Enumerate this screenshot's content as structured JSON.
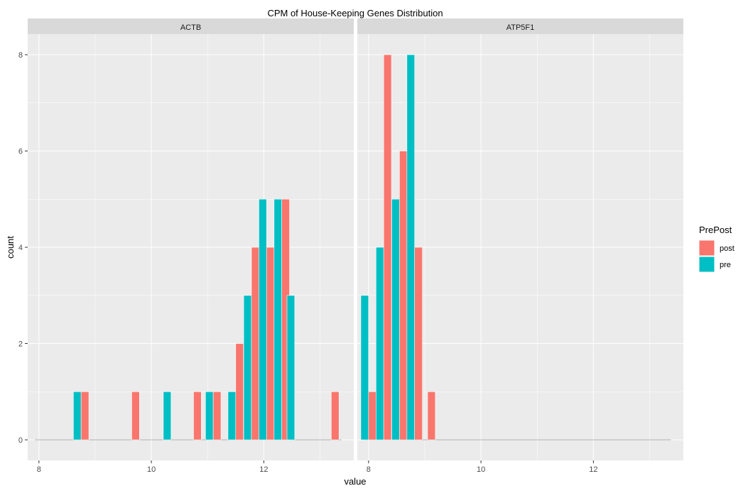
{
  "chart_data": {
    "type": "bar",
    "chart_kind": "faceted histogram (dodged)",
    "title": "CPM of House-Keeping Genes Distribution",
    "xlabel": "value",
    "ylabel": "count",
    "xlim": [
      7.8,
      13.6
    ],
    "ylim": [
      0,
      8.6
    ],
    "x_ticks": [
      8,
      10,
      12
    ],
    "y_ticks": [
      0,
      2,
      4,
      6,
      8
    ],
    "grid": true,
    "legend": {
      "title": "PrePost",
      "position": "right",
      "entries": [
        "post",
        "pre"
      ]
    },
    "colors": {
      "post": "#F8766D",
      "pre": "#00BFC4",
      "panel_bg": "#EBEBEB",
      "strip_bg": "#D9D9D9",
      "grid": "#FFFFFF"
    },
    "bin_width": 0.275,
    "facets": [
      {
        "name": "ACTB",
        "bins": [
          {
            "center": 8.75,
            "pre": 1,
            "post": 1
          },
          {
            "center": 9.65,
            "pre": 0,
            "post": 1
          },
          {
            "center": 10.35,
            "pre": 1,
            "post": 0
          },
          {
            "center": 10.75,
            "pre": 0,
            "post": 1
          },
          {
            "center": 11.1,
            "pre": 1,
            "post": 1
          },
          {
            "center": 11.5,
            "pre": 1,
            "post": 2
          },
          {
            "center": 11.78,
            "pre": 3,
            "post": 4
          },
          {
            "center": 12.05,
            "pre": 5,
            "post": 4
          },
          {
            "center": 12.32,
            "pre": 5,
            "post": 5
          },
          {
            "center": 12.55,
            "pre": 3,
            "post": 0
          },
          {
            "center": 13.2,
            "pre": 0,
            "post": 1
          }
        ]
      },
      {
        "name": "ATP5F1",
        "bins": [
          {
            "center": 8.0,
            "pre": 3,
            "post": 1
          },
          {
            "center": 8.27,
            "pre": 4,
            "post": 8
          },
          {
            "center": 8.55,
            "pre": 5,
            "post": 6
          },
          {
            "center": 8.82,
            "pre": 8,
            "post": 4
          },
          {
            "center": 9.05,
            "pre": 0,
            "post": 1
          }
        ]
      }
    ]
  }
}
